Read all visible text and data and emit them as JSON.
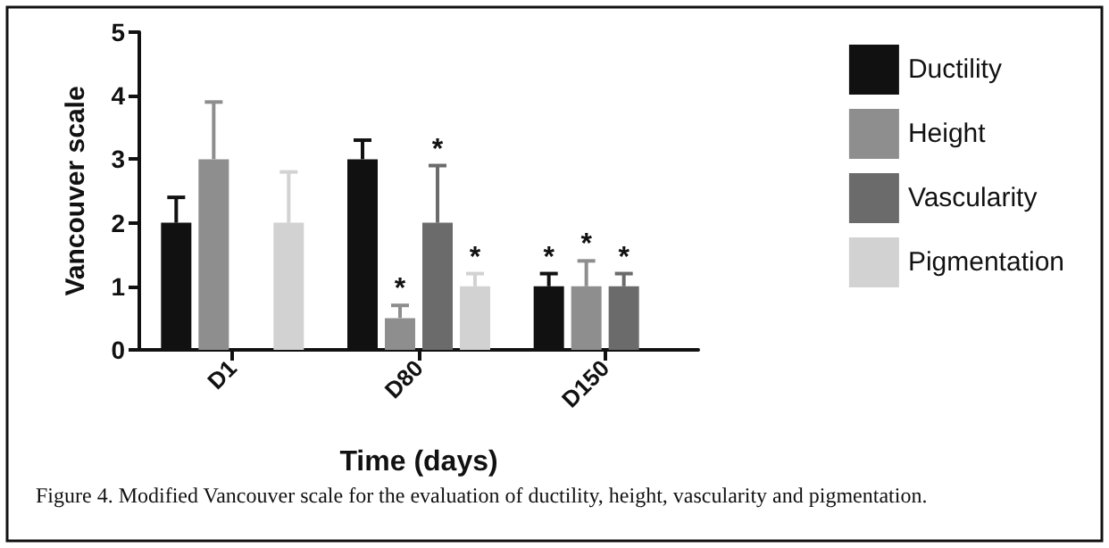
{
  "chart_data": {
    "type": "bar",
    "xlabel": "Time (days)",
    "ylabel": "Vancouver scale",
    "categories": [
      "D1",
      "D80",
      "D150"
    ],
    "series": [
      {
        "name": "Ductility",
        "color": "#111111",
        "values": [
          2,
          3,
          1
        ],
        "errors": [
          [
            2,
            2.4
          ],
          [
            3,
            3.3
          ],
          [
            1,
            1.2
          ]
        ],
        "value_labels": [
          null,
          null,
          "*"
        ]
      },
      {
        "name": "Height",
        "color": "#8e8e8e",
        "values": [
          3,
          0.5,
          1
        ],
        "errors": [
          [
            3,
            3.9
          ],
          [
            0.5,
            0.7
          ],
          [
            1,
            1.4
          ]
        ],
        "value_labels": [
          null,
          "*",
          "*"
        ]
      },
      {
        "name": "Vascularity",
        "color": "#6b6b6b",
        "values": [
          null,
          2,
          1
        ],
        "errors": [
          null,
          [
            2,
            2.9
          ],
          [
            1,
            1.2
          ]
        ],
        "value_labels": [
          null,
          "*",
          "*"
        ]
      },
      {
        "name": "Pigmentation",
        "color": "#d2d2d2",
        "values": [
          2,
          1,
          null
        ],
        "errors": [
          [
            2,
            2.8
          ],
          [
            1,
            1.2
          ],
          null
        ],
        "value_labels": [
          null,
          "*",
          null
        ]
      }
    ],
    "ylim": [
      0,
      5
    ],
    "yticks": [
      0,
      1,
      2,
      3,
      4,
      5
    ],
    "grid": false,
    "legend": "right",
    "annotations": [
      "Figure 4. Modified Vancouver scale for the evaluation of ductility, height, vascularity and pigmentation."
    ]
  }
}
